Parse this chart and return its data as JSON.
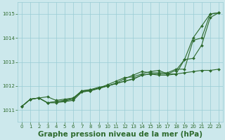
{
  "title": "Graphe pression niveau de la mer (hPa)",
  "bg_color": "#cce8ec",
  "grid_color": "#99ccd4",
  "line_color": "#2d6a2d",
  "x": [
    0,
    1,
    2,
    3,
    4,
    5,
    6,
    7,
    8,
    9,
    10,
    11,
    12,
    13,
    14,
    15,
    16,
    17,
    18,
    19,
    20,
    21,
    22,
    23
  ],
  "series": [
    [
      1011.15,
      1011.45,
      1011.5,
      1011.3,
      1011.35,
      1011.4,
      1011.5,
      1011.75,
      1011.8,
      1011.9,
      1012.0,
      1012.1,
      1012.2,
      1012.3,
      1012.45,
      1012.5,
      1012.45,
      1012.45,
      1012.5,
      1012.55,
      1012.6,
      1012.65,
      1012.65,
      1012.7
    ],
    [
      1011.15,
      1011.45,
      1011.5,
      1011.3,
      1011.3,
      1011.35,
      1011.4,
      1011.75,
      1011.8,
      1011.9,
      1012.0,
      1012.1,
      1012.2,
      1012.28,
      1012.45,
      1012.5,
      1012.5,
      1012.5,
      1012.5,
      1013.1,
      1014.0,
      1014.5,
      1015.0,
      1015.05
    ],
    [
      1011.15,
      1011.45,
      1011.5,
      1011.55,
      1011.4,
      1011.45,
      1011.5,
      1011.8,
      1011.85,
      1011.95,
      1012.0,
      1012.12,
      1012.3,
      1012.45,
      1012.6,
      1012.55,
      1012.55,
      1012.55,
      1012.7,
      1012.7,
      1013.9,
      1014.0,
      1015.0,
      1015.05
    ],
    [
      1011.15,
      1011.45,
      1011.5,
      1011.3,
      1011.35,
      1011.38,
      1011.45,
      1011.8,
      1011.82,
      1011.92,
      1012.05,
      1012.2,
      1012.35,
      1012.38,
      1012.5,
      1012.6,
      1012.65,
      1012.5,
      1012.65,
      1013.1,
      1013.15,
      1013.7,
      1014.85,
      1015.05
    ]
  ],
  "ylim": [
    1010.5,
    1015.5
  ],
  "yticks": [
    1011,
    1012,
    1013,
    1014,
    1015
  ],
  "xticks": [
    0,
    1,
    2,
    3,
    4,
    5,
    6,
    7,
    8,
    9,
    10,
    11,
    12,
    13,
    14,
    15,
    16,
    17,
    18,
    19,
    20,
    21,
    22,
    23
  ],
  "marker": "D",
  "markersize": 2.0,
  "linewidth": 0.8,
  "title_fontsize": 7.5,
  "tick_fontsize": 5.0,
  "xlabel_color": "#2d6a2d"
}
